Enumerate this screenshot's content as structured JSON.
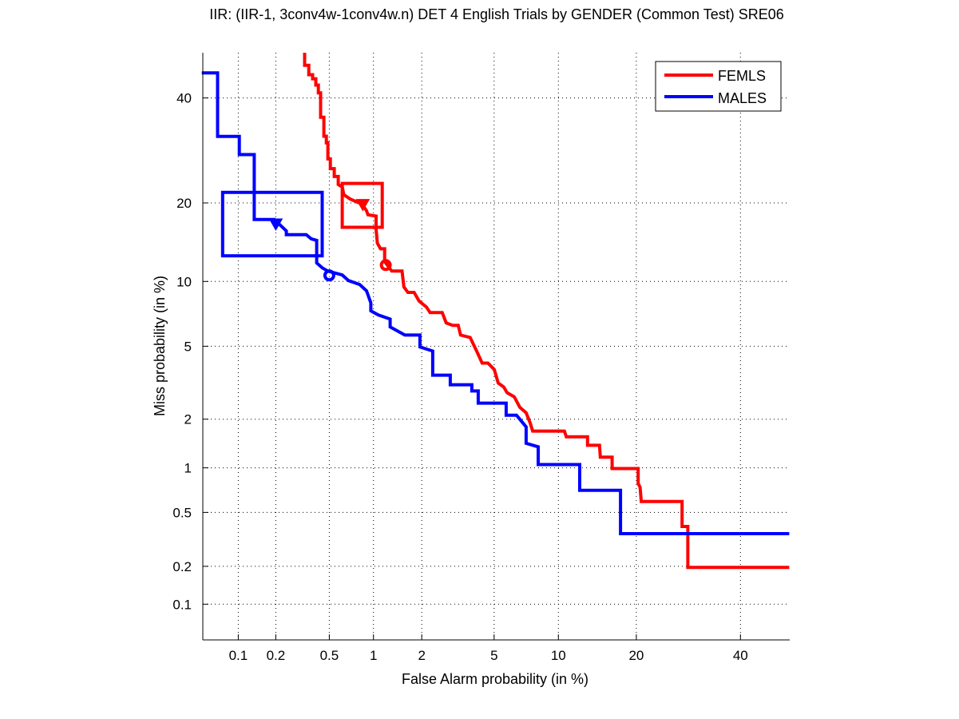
{
  "chart_data": {
    "type": "line",
    "subtype": "DET (normal-deviate scale)",
    "title": "IIR: (IIR-1, 3conv4w-1conv4w.n) DET 4 English Trials by GENDER (Common Test) SRE06",
    "xlabel": "False Alarm probability (in %)",
    "ylabel": "Miss probability (in %)",
    "xscale": "probit",
    "yscale": "probit",
    "xlim": [
      0.05,
      51
    ],
    "ylim": [
      0.05,
      50
    ],
    "xticks": [
      0.1,
      0.2,
      0.5,
      1,
      2,
      5,
      10,
      20,
      40
    ],
    "xtick_labels": [
      "0.1",
      "0.2",
      "0.5",
      "1",
      "2",
      "5",
      "10",
      "20",
      "40"
    ],
    "yticks": [
      0.1,
      0.2,
      0.5,
      1,
      2,
      5,
      10,
      20,
      40
    ],
    "ytick_labels": [
      "0.1",
      "0.2",
      "0.5",
      "1",
      "2",
      "5",
      "10",
      "20",
      "40"
    ],
    "grid": true,
    "legend_position": "top-right",
    "series": [
      {
        "name": "FEMLS",
        "color": "#ff0000",
        "points": [
          [
            0.331,
            50.0
          ],
          [
            0.331,
            47.2
          ],
          [
            0.355,
            47.2
          ],
          [
            0.355,
            45.1
          ],
          [
            0.379,
            45.1
          ],
          [
            0.379,
            44.2
          ],
          [
            0.4,
            44.2
          ],
          [
            0.4,
            42.8
          ],
          [
            0.417,
            42.8
          ],
          [
            0.417,
            41.1
          ],
          [
            0.433,
            41.1
          ],
          [
            0.433,
            35.9
          ],
          [
            0.457,
            35.9
          ],
          [
            0.457,
            32.0
          ],
          [
            0.476,
            32.0
          ],
          [
            0.476,
            30.7
          ],
          [
            0.488,
            30.7
          ],
          [
            0.488,
            27.6
          ],
          [
            0.508,
            27.6
          ],
          [
            0.508,
            25.8
          ],
          [
            0.542,
            25.8
          ],
          [
            0.542,
            24.4
          ],
          [
            0.578,
            24.4
          ],
          [
            0.578,
            23.0
          ],
          [
            0.616,
            22.6
          ],
          [
            0.632,
            21.3
          ],
          [
            0.7,
            20.6
          ],
          [
            0.84,
            19.8
          ],
          [
            0.9,
            18.8
          ],
          [
            0.92,
            18.2
          ],
          [
            1.04,
            18.0
          ],
          [
            1.04,
            16.1
          ],
          [
            1.06,
            14.3
          ],
          [
            1.11,
            13.6
          ],
          [
            1.18,
            13.6
          ],
          [
            1.18,
            12.1
          ],
          [
            1.31,
            11.06
          ],
          [
            1.52,
            11.06
          ],
          [
            1.56,
            9.47
          ],
          [
            1.65,
            8.96
          ],
          [
            1.8,
            8.96
          ],
          [
            1.93,
            8.2
          ],
          [
            2.13,
            7.71
          ],
          [
            2.24,
            7.27
          ],
          [
            2.63,
            7.27
          ],
          [
            2.77,
            6.5
          ],
          [
            3.01,
            6.33
          ],
          [
            3.23,
            6.33
          ],
          [
            3.33,
            5.68
          ],
          [
            3.75,
            5.53
          ],
          [
            4.06,
            4.73
          ],
          [
            4.34,
            4.1
          ],
          [
            4.65,
            4.1
          ],
          [
            5.01,
            3.79
          ],
          [
            5.24,
            3.21
          ],
          [
            5.59,
            3.05
          ],
          [
            5.8,
            2.84
          ],
          [
            6.29,
            2.69
          ],
          [
            6.68,
            2.35
          ],
          [
            7.16,
            2.18
          ],
          [
            7.48,
            1.9
          ],
          [
            7.68,
            1.7
          ],
          [
            10.6,
            1.7
          ],
          [
            10.8,
            1.57
          ],
          [
            13.2,
            1.57
          ],
          [
            13.2,
            1.39
          ],
          [
            14.7,
            1.39
          ],
          [
            14.8,
            1.17
          ],
          [
            16.4,
            1.17
          ],
          [
            16.4,
            0.99
          ],
          [
            20.3,
            0.99
          ],
          [
            20.3,
            0.79
          ],
          [
            20.6,
            0.745
          ],
          [
            20.8,
            0.595
          ],
          [
            28.0,
            0.595
          ],
          [
            28.0,
            0.397
          ],
          [
            29.1,
            0.397
          ],
          [
            29.1,
            0.196
          ],
          [
            50.9,
            0.196
          ]
        ],
        "min_dcf_box": {
          "fa": [
            0.616,
            1.14
          ],
          "miss": [
            16.4,
            23.2
          ]
        },
        "actual_dcf_marker": {
          "shape": "triangle",
          "fa": 0.85,
          "miss": 19.8
        },
        "min_dcf_marker": {
          "shape": "circle",
          "fa": 1.2,
          "miss": 11.7
        }
      },
      {
        "name": "MALES",
        "color": "#0000ff",
        "points": [
          [
            0.049,
            45.5
          ],
          [
            0.067,
            45.5
          ],
          [
            0.067,
            31.96
          ],
          [
            0.102,
            31.96
          ],
          [
            0.102,
            28.4
          ],
          [
            0.135,
            28.4
          ],
          [
            0.135,
            17.5
          ],
          [
            0.195,
            17.5
          ],
          [
            0.241,
            15.9
          ],
          [
            0.241,
            15.4
          ],
          [
            0.34,
            15.4
          ],
          [
            0.37,
            14.85
          ],
          [
            0.406,
            14.65
          ],
          [
            0.406,
            11.94
          ],
          [
            0.445,
            11.4
          ],
          [
            0.488,
            11.06
          ],
          [
            0.616,
            10.65
          ],
          [
            0.68,
            10.08
          ],
          [
            0.81,
            9.7
          ],
          [
            0.9,
            9.11
          ],
          [
            0.96,
            8.05
          ],
          [
            0.96,
            7.4
          ],
          [
            1.075,
            7.08
          ],
          [
            1.28,
            6.78
          ],
          [
            1.28,
            6.22
          ],
          [
            1.58,
            5.68
          ],
          [
            1.95,
            5.68
          ],
          [
            1.95,
            4.96
          ],
          [
            2.32,
            4.73
          ],
          [
            2.32,
            3.54
          ],
          [
            2.92,
            3.54
          ],
          [
            2.92,
            3.14
          ],
          [
            3.83,
            3.14
          ],
          [
            3.83,
            2.9
          ],
          [
            4.14,
            2.9
          ],
          [
            4.14,
            2.48
          ],
          [
            5.74,
            2.48
          ],
          [
            5.74,
            2.11
          ],
          [
            6.45,
            2.11
          ],
          [
            7.16,
            1.8
          ],
          [
            7.16,
            1.43
          ],
          [
            8.14,
            1.36
          ],
          [
            8.14,
            1.05
          ],
          [
            12.28,
            1.05
          ],
          [
            12.28,
            0.71
          ],
          [
            17.6,
            0.71
          ],
          [
            17.6,
            0.352
          ],
          [
            50.9,
            0.352
          ]
        ],
        "min_dcf_box": {
          "fa": [
            0.074,
            0.445
          ],
          "miss": [
            12.76,
            21.7
          ]
        },
        "actual_dcf_marker": {
          "shape": "triangle",
          "fa": 0.2,
          "miss": 16.9
        },
        "min_dcf_marker": {
          "shape": "circle",
          "fa": 0.5,
          "miss": 10.6
        }
      }
    ]
  }
}
